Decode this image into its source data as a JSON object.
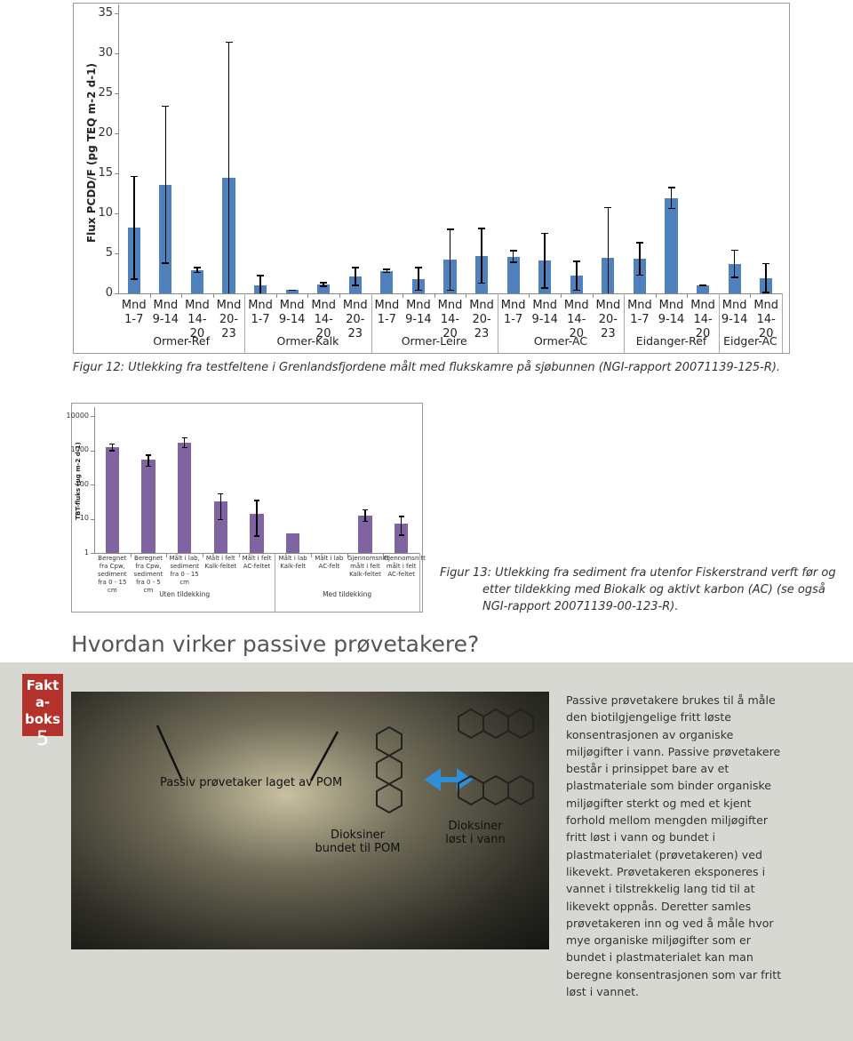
{
  "chart_data": [
    {
      "type": "bar",
      "y_label": "Flux PCDD/F (pg TEQ m-2 d-1)",
      "color": "#4f81bd",
      "categories": [
        "Mnd 1-7",
        "Mnd 9-14",
        "Mnd 14-20",
        "Mnd 20-23",
        "Mnd 1-7",
        "Mnd 9-14",
        "Mnd 14-20",
        "Mnd 20-23",
        "Mnd 1-7",
        "Mnd 9-14",
        "Mnd 14-20",
        "Mnd 20-23",
        "Mnd 1-7",
        "Mnd 9-14",
        "Mnd 14-20",
        "Mnd 20-23",
        "Mnd 1-7",
        "Mnd 9-14",
        "Mnd 14-20",
        "Mnd 9-14",
        "Mnd 14-20"
      ],
      "values": [
        8.2,
        13.6,
        2.9,
        14.4,
        1.0,
        0.4,
        1.1,
        2.1,
        2.8,
        1.8,
        4.2,
        4.7,
        4.6,
        4.1,
        2.2,
        4.5,
        4.3,
        11.9,
        1.0,
        3.7,
        1.9
      ],
      "errors": [
        6.5,
        9.9,
        0.4,
        17.1,
        1.3,
        0.1,
        0.3,
        1.2,
        0.3,
        1.5,
        3.9,
        3.5,
        0.8,
        3.5,
        1.9,
        6.3,
        2.1,
        1.4,
        0.1,
        1.8,
        1.9
      ],
      "groups": [
        {
          "name": "Ormer-Ref",
          "count": 4
        },
        {
          "name": "Ormer-Kalk",
          "count": 4
        },
        {
          "name": "Ormer-Leire",
          "count": 4
        },
        {
          "name": "Ormer-AC",
          "count": 4
        },
        {
          "name": "Eidanger-Ref",
          "count": 3
        },
        {
          "name": "Eidger-AC",
          "count": 2
        }
      ],
      "ylim": [
        0,
        35
      ],
      "yticks": [
        0,
        5,
        10,
        15,
        20,
        25,
        30,
        35
      ],
      "grid": false
    },
    {
      "type": "bar",
      "y_label": "TBT-fluks (µg m-2 d-1)",
      "color": "#8064a2",
      "log_scale": true,
      "categories": [
        "Beregnet fra Cpw, sediment fra 0 - 15 cm",
        "Beregnet fra Cpw, sediment fra 0 - 5 cm",
        "Målt i lab, sediment fra 0 - 15 cm",
        "Målt i felt Kalk-feltet",
        "Målt i felt AC-feltet",
        "Målt i lab Kalk-felt",
        "Målt i lab AC-felt",
        "Gjennomsnitt målt i felt Kalk-feltet",
        "Gjennomsnitt målt i felt AC-feltet"
      ],
      "values": [
        1230,
        530,
        1660,
        32,
        14,
        3.7,
        null,
        12,
        7.2
      ],
      "errors_low": [
        300,
        200,
        500,
        23,
        11,
        null,
        null,
        4,
        4
      ],
      "errors_high": [
        370,
        230,
        730,
        23,
        22,
        null,
        null,
        7,
        5
      ],
      "groups": [
        {
          "name": "Uten tildekking",
          "count": 5
        },
        {
          "name": "Med tildekking",
          "count": 4
        }
      ],
      "ylim": [
        1,
        10000
      ],
      "yticks": [
        1,
        10,
        100,
        1000,
        10000
      ],
      "grid": false
    }
  ],
  "captions": [
    "Figur 12: Utlekking fra testfeltene i Grenlandsfjordene målt med flukskamre på sjøbunnen (NGI-rapport 20071139-125-R).",
    "Figur 13: Utlekking fra sediment fra utenfor Fiskerstrand verft før og etter tildekking med Biokalk og aktivt karbon (AC) (se også NGI-rapport 20071139-00-123-R)."
  ],
  "heading": "Hvordan virker passive prøvetakere?",
  "factbox": {
    "label": "Fakta-boks",
    "number": "5",
    "image_labels": [
      "Passiv prøvetaker laget av POM",
      "Dioksiner bundet til POM",
      "Dioksiner løst i vann"
    ],
    "text": "Passive prøvetakere brukes til å måle den biotilgjengelige fritt løste konsentrasjonen av organiske miljøgifter i vann. Passive prøvetakere består i prinsippet bare av et plastmateriale som binder organiske miljøgifter sterkt og med et kjent forhold mellom mengden miljøgifter fritt løst i vann og bundet i plastmaterialet (prøvetakeren) ved likevekt. Prøvetakeren eksponeres i vannet i tilstrekkelig lang tid til at likevekt oppnås. Deretter samles prøvetakeren inn og ved å måle hvor mye organiske miljøgifter som er bundet i plastmaterialet kan man beregne konsentrasjonen som var fritt løst i vannet."
  }
}
